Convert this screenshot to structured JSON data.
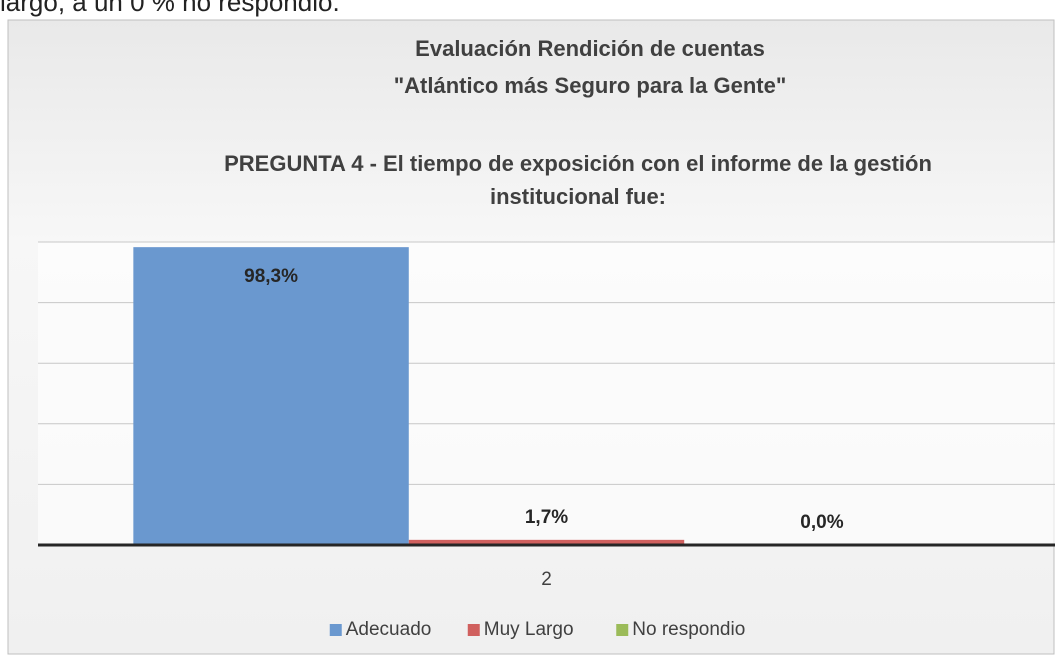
{
  "text_above": "largo, a un 0 % no respondió.",
  "chart_data": {
    "type": "bar",
    "title": [
      "Evaluación Rendición de cuentas",
      "\"Atlántico más Seguro para la Gente\""
    ],
    "subtitle": [
      "PREGUNTA 4 - El tiempo de exposición con el informe de la gestión",
      "institucional fue:"
    ],
    "categories": [
      "2"
    ],
    "series": [
      {
        "name": "Adecuado",
        "color": "#6a98cf",
        "values": [
          98.3
        ],
        "value_labels": [
          "98,3%"
        ]
      },
      {
        "name": "Muy Largo",
        "color": "#d0605e",
        "values": [
          1.7
        ],
        "value_labels": [
          "1,7%"
        ]
      },
      {
        "name": "No respondio",
        "color": "#9bbb59",
        "values": [
          0.0
        ],
        "value_labels": [
          "0,0%"
        ]
      }
    ],
    "ylim": [
      0,
      100
    ],
    "yticks": [
      0,
      20,
      40,
      60,
      80,
      100
    ],
    "grid": true,
    "legend": "bottom"
  }
}
